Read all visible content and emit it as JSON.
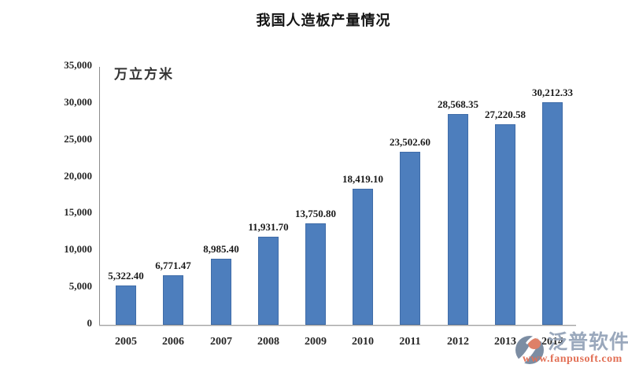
{
  "chart_data": {
    "type": "bar",
    "title": "我国人造板产量情况",
    "unit_label": "万立方米",
    "categories": [
      "2005",
      "2006",
      "2007",
      "2008",
      "2009",
      "2010",
      "2011",
      "2012",
      "2013",
      "2014"
    ],
    "values": [
      5322.4,
      6771.47,
      8985.4,
      11931.7,
      13750.8,
      18419.1,
      23502.6,
      28568.35,
      27220.58,
      30212.33
    ],
    "data_labels": [
      "5,322.40",
      "6,771.47",
      "8,985.40",
      "11,931.70",
      "13,750.80",
      "18,419.10",
      "23,502.60",
      "28,568.35",
      "27,220.58",
      "30,212.33"
    ],
    "xlabel": "",
    "ylabel": "万立方米",
    "ylim": [
      0,
      35000
    ],
    "y_ticks": [
      "0",
      "5,000",
      "10,000",
      "15,000",
      "20,000",
      "25,000",
      "30,000",
      "35,000"
    ],
    "grid": false,
    "legend": false,
    "bar_color": "#4d7ebd",
    "bar_border_color": "#3f6ca8",
    "axis_color": "#8c8c8c",
    "label_color": "#1a1a1a"
  },
  "watermark": {
    "logo": "fanpu-logo",
    "brand": "泛普软件",
    "url": "www.fanpusoft.com",
    "brand_color": "#95a4b9",
    "url_color": "#e1694d",
    "logo_blue": "#76879f",
    "logo_red": "#dd7a60"
  }
}
